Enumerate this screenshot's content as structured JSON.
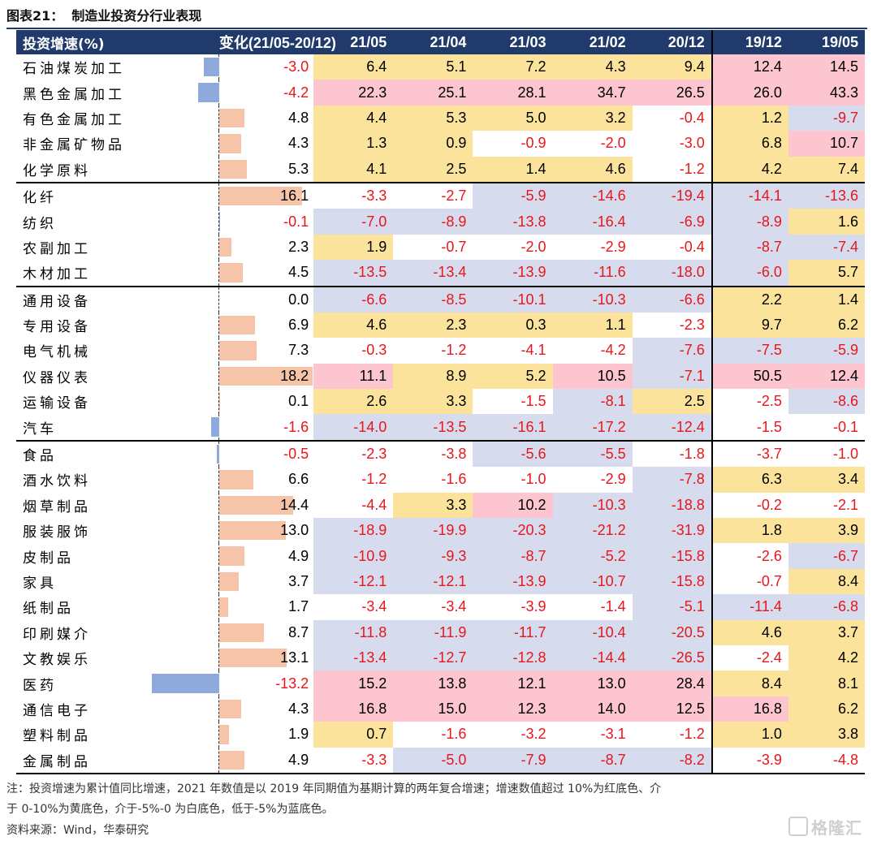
{
  "title": {
    "num": "图表21：",
    "text": "制造业投资分行业表现"
  },
  "header": {
    "col_name": "投资增速(%)",
    "col_change": "变化(21/05-20/12)",
    "periods": [
      "21/05",
      "21/04",
      "21/03",
      "21/02",
      "20/12",
      "19/12",
      "19/05"
    ]
  },
  "colors": {
    "red": "#fcc5d0",
    "yellow": "#fce39b",
    "white": "#ffffff",
    "blue": "#d6dcee",
    "bar_positive": "#f6c4a8",
    "bar_negative": "#8eaadc",
    "negative_text": "#e8161b"
  },
  "rows": [
    {
      "name": "石油煤炭加工",
      "change": "-3.0",
      "values": [
        "6.4",
        "5.1",
        "7.2",
        "4.3",
        "9.4",
        "12.4",
        "14.5"
      ],
      "fills": [
        "y",
        "y",
        "y",
        "y",
        "y",
        "r",
        "r"
      ],
      "group_start": false
    },
    {
      "name": "黑色金属加工",
      "change": "-4.2",
      "values": [
        "22.3",
        "25.1",
        "28.1",
        "34.7",
        "26.5",
        "26.0",
        "43.3"
      ],
      "fills": [
        "r",
        "r",
        "r",
        "r",
        "r",
        "r",
        "r"
      ],
      "group_start": false
    },
    {
      "name": "有色金属加工",
      "change": "4.8",
      "values": [
        "4.4",
        "5.3",
        "5.0",
        "3.2",
        "-0.4",
        "1.2",
        "-9.7"
      ],
      "fills": [
        "y",
        "y",
        "y",
        "y",
        "w",
        "y",
        "b"
      ],
      "group_start": false
    },
    {
      "name": "非金属矿物品",
      "change": "4.3",
      "values": [
        "1.3",
        "0.9",
        "-0.9",
        "-2.0",
        "-3.0",
        "6.8",
        "10.7"
      ],
      "fills": [
        "y",
        "y",
        "w",
        "w",
        "w",
        "y",
        "r"
      ],
      "group_start": false
    },
    {
      "name": "化学原料",
      "change": "5.3",
      "values": [
        "4.1",
        "2.5",
        "1.4",
        "4.6",
        "-1.2",
        "4.2",
        "7.4"
      ],
      "fills": [
        "y",
        "y",
        "y",
        "y",
        "w",
        "y",
        "y"
      ],
      "group_start": false
    },
    {
      "name": "化纤",
      "change": "16.1",
      "values": [
        "-3.3",
        "-2.7",
        "-5.9",
        "-14.6",
        "-19.4",
        "-14.1",
        "-13.6"
      ],
      "fills": [
        "w",
        "w",
        "b",
        "b",
        "b",
        "b",
        "b"
      ],
      "group_start": true
    },
    {
      "name": "纺织",
      "change": "-0.1",
      "values": [
        "-7.0",
        "-8.9",
        "-13.8",
        "-16.4",
        "-6.9",
        "-8.9",
        "1.6"
      ],
      "fills": [
        "b",
        "b",
        "b",
        "b",
        "b",
        "b",
        "y"
      ],
      "group_start": false
    },
    {
      "name": "农副加工",
      "change": "2.3",
      "values": [
        "1.9",
        "-0.7",
        "-2.0",
        "-2.9",
        "-0.4",
        "-8.7",
        "-7.4"
      ],
      "fills": [
        "y",
        "w",
        "w",
        "w",
        "w",
        "b",
        "b"
      ],
      "group_start": false
    },
    {
      "name": "木材加工",
      "change": "4.5",
      "values": [
        "-13.5",
        "-13.4",
        "-13.9",
        "-11.6",
        "-18.0",
        "-6.0",
        "5.7"
      ],
      "fills": [
        "b",
        "b",
        "b",
        "b",
        "b",
        "b",
        "y"
      ],
      "group_start": false
    },
    {
      "name": "通用设备",
      "change": "0.0",
      "values": [
        "-6.6",
        "-8.5",
        "-10.1",
        "-10.3",
        "-6.6",
        "2.2",
        "1.4"
      ],
      "fills": [
        "b",
        "b",
        "b",
        "b",
        "b",
        "y",
        "y"
      ],
      "group_start": true
    },
    {
      "name": "专用设备",
      "change": "6.9",
      "values": [
        "4.6",
        "2.3",
        "0.3",
        "1.1",
        "-2.3",
        "9.7",
        "6.2"
      ],
      "fills": [
        "y",
        "y",
        "y",
        "y",
        "w",
        "y",
        "y"
      ],
      "group_start": false
    },
    {
      "name": "电气机械",
      "change": "7.3",
      "values": [
        "-0.3",
        "-1.2",
        "-4.1",
        "-4.2",
        "-7.6",
        "-7.5",
        "-5.9"
      ],
      "fills": [
        "w",
        "w",
        "w",
        "w",
        "b",
        "b",
        "b"
      ],
      "group_start": false
    },
    {
      "name": "仪器仪表",
      "change": "18.2",
      "values": [
        "11.1",
        "8.9",
        "5.2",
        "10.5",
        "-7.1",
        "50.5",
        "12.4"
      ],
      "fills": [
        "r",
        "y",
        "y",
        "r",
        "b",
        "r",
        "r"
      ],
      "group_start": false
    },
    {
      "name": "运输设备",
      "change": "0.1",
      "values": [
        "2.6",
        "3.3",
        "-1.5",
        "-8.1",
        "2.5",
        "-2.5",
        "-8.6"
      ],
      "fills": [
        "y",
        "y",
        "w",
        "b",
        "y",
        "w",
        "b"
      ],
      "group_start": false
    },
    {
      "name": "汽车",
      "change": "-1.6",
      "values": [
        "-14.0",
        "-13.5",
        "-16.1",
        "-17.2",
        "-12.4",
        "-1.5",
        "-0.1"
      ],
      "fills": [
        "b",
        "b",
        "b",
        "b",
        "b",
        "w",
        "w"
      ],
      "group_start": false
    },
    {
      "name": "食品",
      "change": "-0.5",
      "values": [
        "-2.3",
        "-3.8",
        "-5.6",
        "-5.5",
        "-1.8",
        "-3.7",
        "-1.0"
      ],
      "fills": [
        "w",
        "w",
        "b",
        "b",
        "w",
        "w",
        "w"
      ],
      "group_start": true
    },
    {
      "name": "酒水饮料",
      "change": "6.6",
      "values": [
        "-1.2",
        "-1.6",
        "-1.0",
        "-2.9",
        "-7.8",
        "6.3",
        "3.4"
      ],
      "fills": [
        "w",
        "w",
        "w",
        "w",
        "b",
        "y",
        "y"
      ],
      "group_start": false
    },
    {
      "name": "烟草制品",
      "change": "14.4",
      "values": [
        "-4.4",
        "3.3",
        "10.2",
        "-10.3",
        "-18.8",
        "-0.2",
        "-2.1"
      ],
      "fills": [
        "w",
        "y",
        "r",
        "b",
        "b",
        "w",
        "w"
      ],
      "group_start": false
    },
    {
      "name": "服装服饰",
      "change": "13.0",
      "values": [
        "-18.9",
        "-19.9",
        "-20.3",
        "-21.2",
        "-31.9",
        "1.8",
        "3.9"
      ],
      "fills": [
        "b",
        "b",
        "b",
        "b",
        "b",
        "y",
        "y"
      ],
      "group_start": false
    },
    {
      "name": "皮制品",
      "change": "4.9",
      "values": [
        "-10.9",
        "-9.3",
        "-8.7",
        "-5.2",
        "-15.8",
        "-2.6",
        "-6.7"
      ],
      "fills": [
        "b",
        "b",
        "b",
        "b",
        "b",
        "w",
        "b"
      ],
      "group_start": false
    },
    {
      "name": "家具",
      "change": "3.7",
      "values": [
        "-12.1",
        "-12.1",
        "-13.9",
        "-10.7",
        "-15.8",
        "-0.7",
        "8.4"
      ],
      "fills": [
        "b",
        "b",
        "b",
        "b",
        "b",
        "w",
        "y"
      ],
      "group_start": false
    },
    {
      "name": "纸制品",
      "change": "1.7",
      "values": [
        "-3.4",
        "-3.4",
        "-3.9",
        "-1.4",
        "-5.1",
        "-11.4",
        "-6.8"
      ],
      "fills": [
        "w",
        "w",
        "w",
        "w",
        "b",
        "b",
        "b"
      ],
      "group_start": false
    },
    {
      "name": "印刷媒介",
      "change": "8.7",
      "values": [
        "-11.8",
        "-11.9",
        "-11.7",
        "-10.4",
        "-20.5",
        "4.6",
        "3.7"
      ],
      "fills": [
        "b",
        "b",
        "b",
        "b",
        "b",
        "y",
        "y"
      ],
      "group_start": false
    },
    {
      "name": "文教娱乐",
      "change": "13.1",
      "values": [
        "-13.4",
        "-12.7",
        "-12.8",
        "-14.4",
        "-26.5",
        "-2.4",
        "4.2"
      ],
      "fills": [
        "b",
        "b",
        "b",
        "b",
        "b",
        "w",
        "y"
      ],
      "group_start": false
    },
    {
      "name": "医药",
      "change": "-13.2",
      "values": [
        "15.2",
        "13.8",
        "12.1",
        "13.0",
        "28.4",
        "8.4",
        "8.1"
      ],
      "fills": [
        "r",
        "r",
        "r",
        "r",
        "r",
        "y",
        "y"
      ],
      "group_start": false
    },
    {
      "name": "通信电子",
      "change": "4.3",
      "values": [
        "16.8",
        "15.0",
        "12.3",
        "14.0",
        "12.5",
        "16.8",
        "6.2"
      ],
      "fills": [
        "r",
        "r",
        "r",
        "r",
        "r",
        "r",
        "y"
      ],
      "group_start": false
    },
    {
      "name": "塑料制品",
      "change": "1.9",
      "values": [
        "0.7",
        "-1.6",
        "-3.2",
        "-3.1",
        "-1.2",
        "1.0",
        "3.8"
      ],
      "fills": [
        "y",
        "w",
        "w",
        "w",
        "w",
        "y",
        "y"
      ],
      "group_start": false
    },
    {
      "name": "金属制品",
      "change": "4.9",
      "values": [
        "-3.3",
        "-5.0",
        "-7.9",
        "-8.7",
        "-8.2",
        "-3.9",
        "-4.8"
      ],
      "fills": [
        "w",
        "b",
        "b",
        "b",
        "b",
        "w",
        "w"
      ],
      "group_start": false
    }
  ],
  "notes": [
    "注：投资增速为累计值同比增速，2021 年数值是以 2019 年同期值为基期计算的两年复合增速；增速数值超过 10%为红底色、介",
    "于 0-10%为黄底色，介于-5%-0 为白底色，低于-5%为蓝底色。",
    "资料来源：Wind，华泰研究"
  ],
  "watermark": "格隆汇"
}
